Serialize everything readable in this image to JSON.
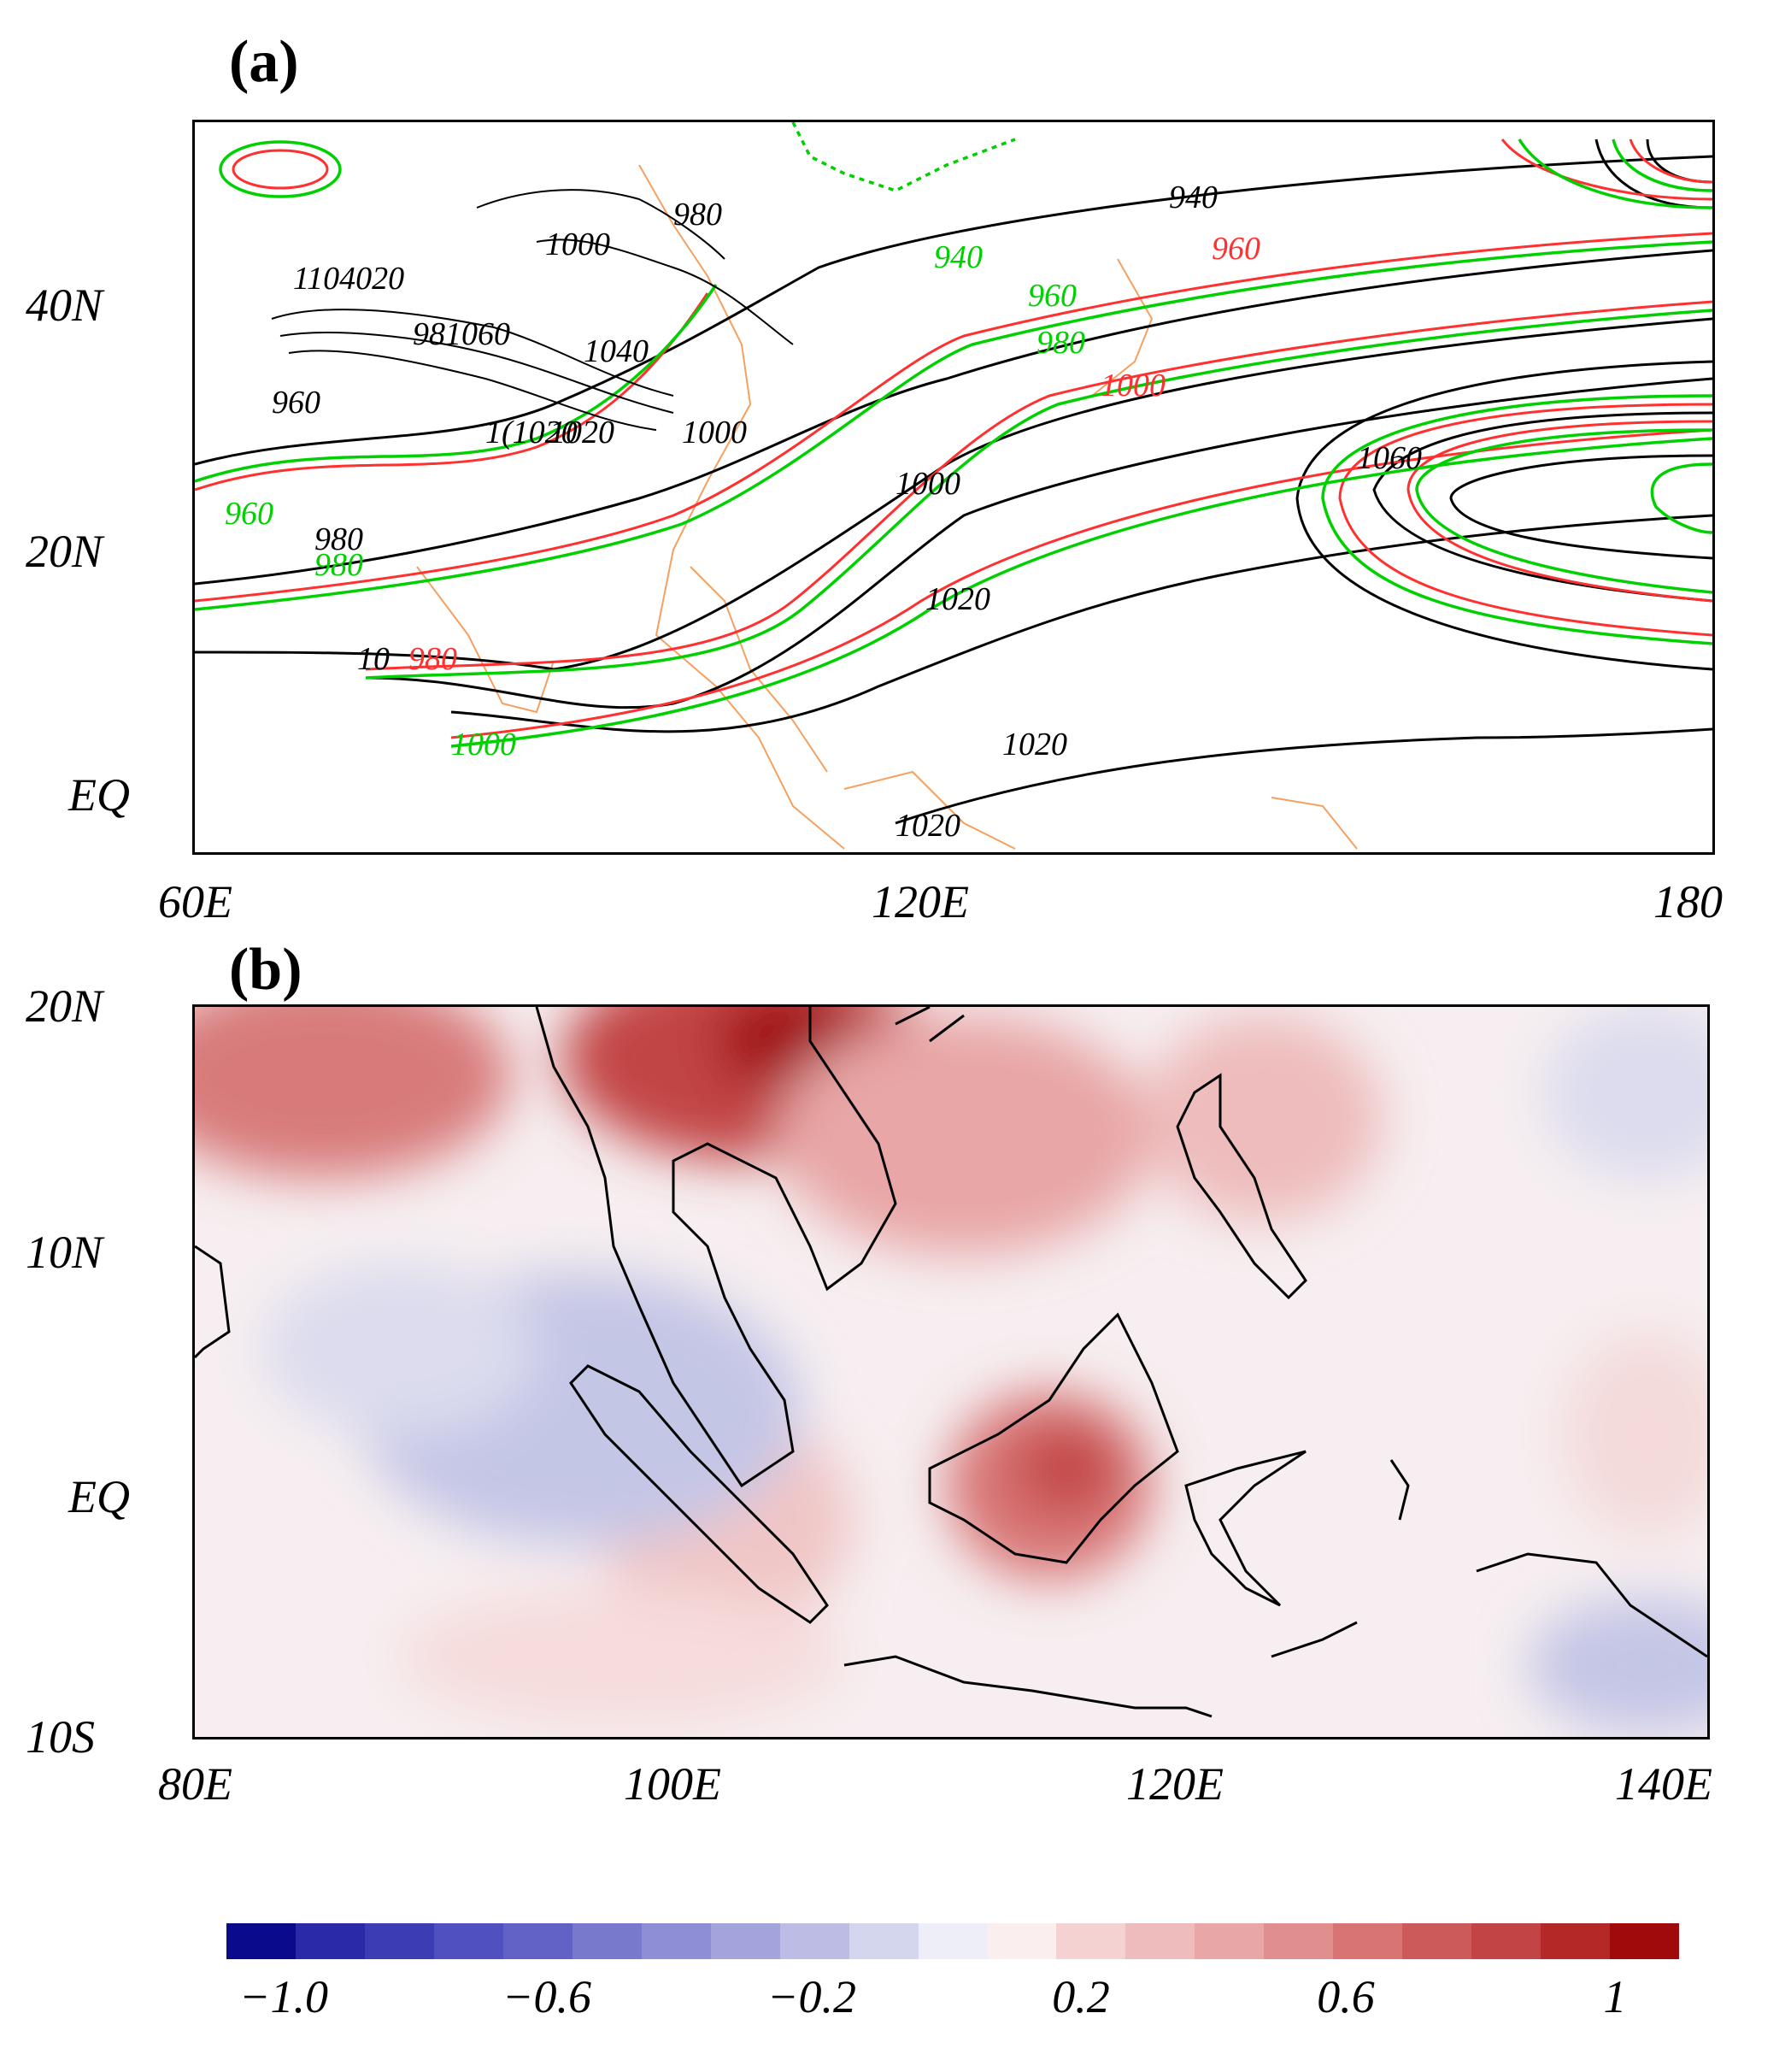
{
  "panel_a": {
    "label": "(a)",
    "x_ticks": [
      "60E",
      "120E",
      "180"
    ],
    "y_ticks": [
      "40N",
      "20N",
      "EQ"
    ],
    "contour_labels_black": [
      "980",
      "1000",
      "1104020",
      "981060",
      "1040",
      "960",
      "1(1020",
      "1020",
      "1000",
      "1060",
      "1000",
      "1020",
      "1020",
      "1020",
      "940",
      "980",
      "10"
    ],
    "contour_labels_green": [
      "940",
      "960",
      "980",
      "960",
      "980",
      "1000"
    ],
    "contour_labels_red": [
      "960",
      "1000",
      "980"
    ],
    "colors": {
      "black": "#000000",
      "red": "#ff3030",
      "green": "#00d000",
      "coast": "#f5a060"
    }
  },
  "panel_b": {
    "label": "(b)",
    "x_ticks": [
      "80E",
      "100E",
      "120E",
      "140E"
    ],
    "y_ticks": [
      "20N",
      "10N",
      "EQ",
      "10S"
    ]
  },
  "colorbar": {
    "tick_labels": [
      "−1.0",
      "−0.6",
      "−0.2",
      "0.2",
      "0.6",
      "1"
    ],
    "colors": [
      "#0a0a8c",
      "#2a2aa8",
      "#3c3cb4",
      "#5050c0",
      "#6262c6",
      "#7878cc",
      "#8e8ed6",
      "#a4a4dc",
      "#bcbce4",
      "#d4d6ee",
      "#eeeef8",
      "#fbeeee",
      "#f4d2d2",
      "#eebcbc",
      "#e8a6a6",
      "#e08e8e",
      "#d87474",
      "#cc5a5a",
      "#c24444",
      "#b42828",
      "#a00a0a",
      "#ffffff"
    ]
  }
}
